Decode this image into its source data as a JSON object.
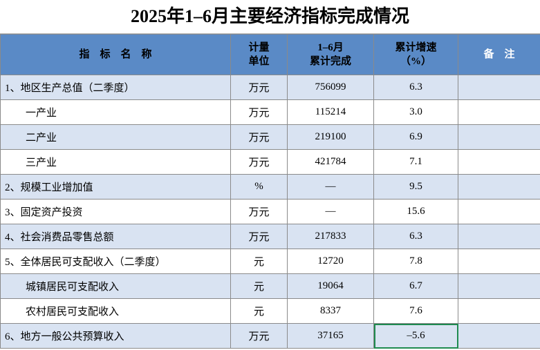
{
  "title": "2025年1–6月主要经济指标完成情况",
  "table": {
    "header": [
      "指　标　名　称",
      "计量\n单位",
      "1–6月\n累计完成",
      "累计增速\n（%）",
      "备　注"
    ],
    "rows": [
      [
        "1、地区生产总值（二季度）",
        "万元",
        "756099",
        "6.3",
        ""
      ],
      [
        "一产业",
        "万元",
        "115214",
        "3.0",
        ""
      ],
      [
        "二产业",
        "万元",
        "219100",
        "6.9",
        ""
      ],
      [
        "三产业",
        "万元",
        "421784",
        "7.1",
        ""
      ],
      [
        "2、规模工业增加值",
        "%",
        "—",
        "9.5",
        ""
      ],
      [
        "3、固定资产投资",
        "万元",
        "—",
        "15.6",
        ""
      ],
      [
        "4、社会消费品零售总额",
        "万元",
        "217833",
        "6.3",
        ""
      ],
      [
        "5、全体居民可支配收入（二季度）",
        "元",
        "12720",
        "7.8",
        ""
      ],
      [
        "城镇居民可支配收入",
        "元",
        "19064",
        "6.7",
        ""
      ],
      [
        "农村居民可支配收入",
        "元",
        "8337",
        "7.6",
        ""
      ],
      [
        "6、地方一般公共预算收入",
        "万元",
        "37165",
        "–5.6",
        ""
      ]
    ],
    "indented": [
      false,
      true,
      true,
      true,
      false,
      false,
      false,
      false,
      true,
      true,
      false
    ]
  }
}
